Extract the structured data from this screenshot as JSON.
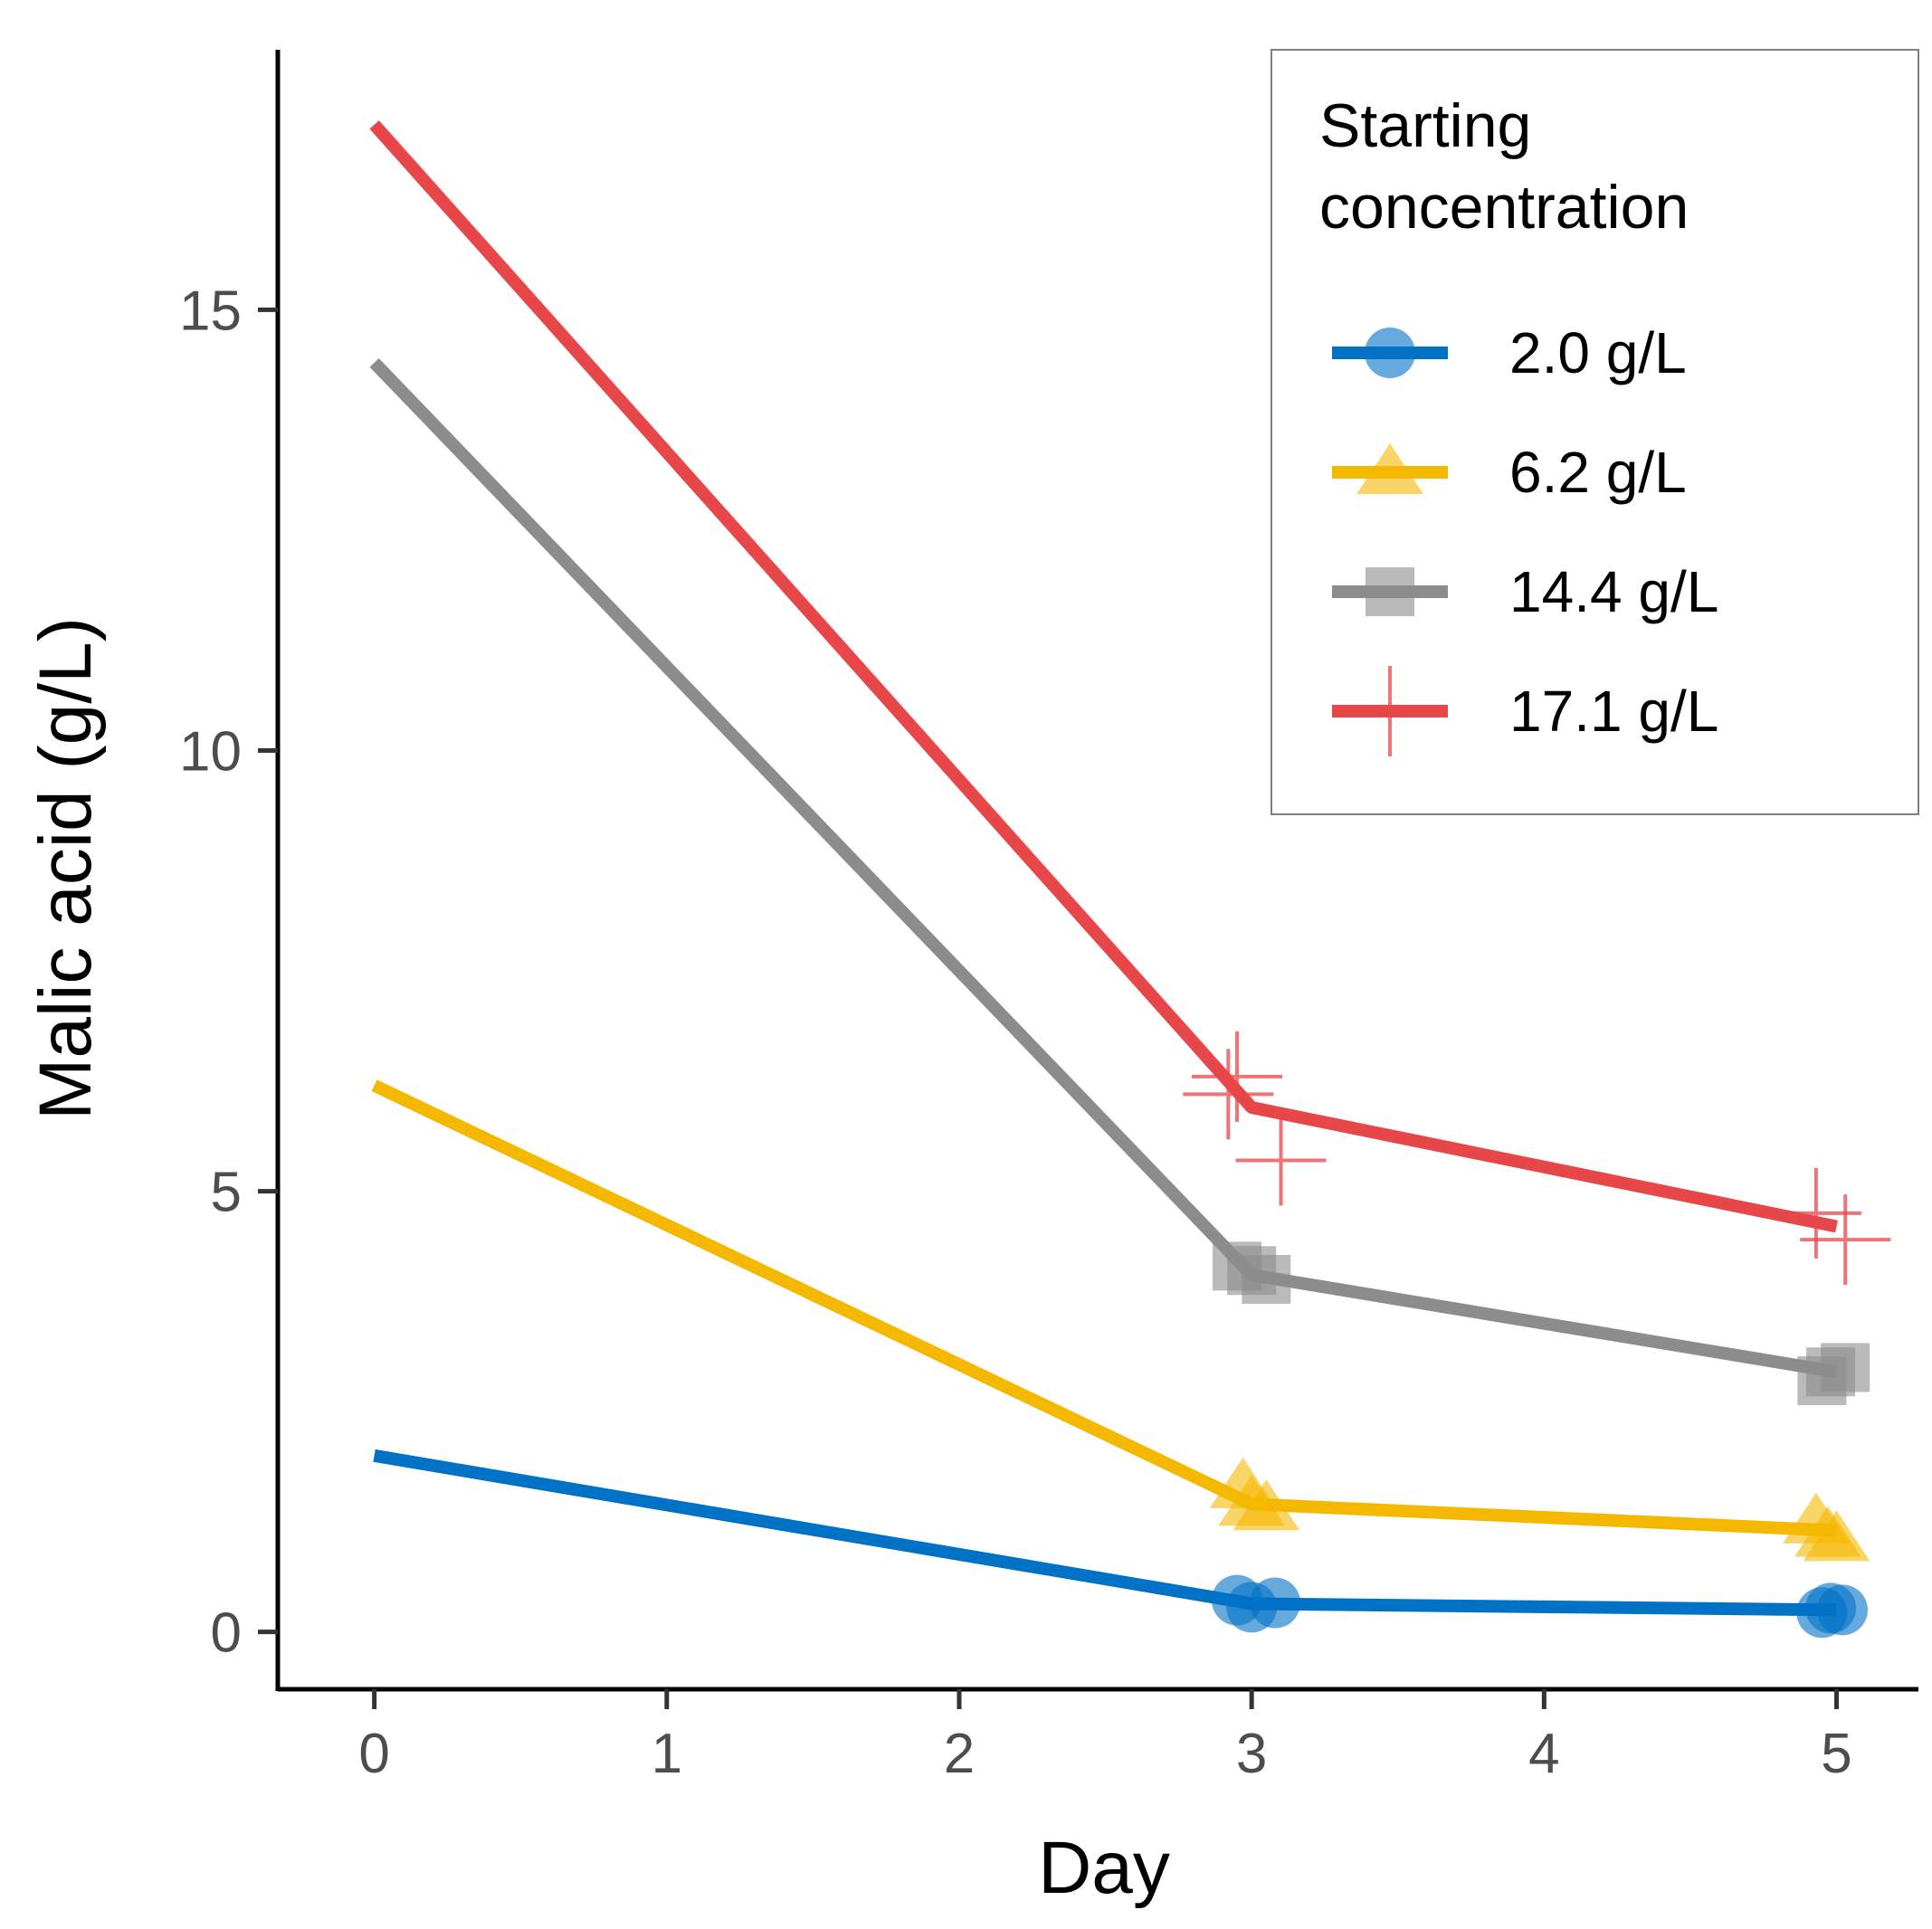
{
  "chart_data": {
    "type": "line",
    "title": "",
    "xlabel": "Day",
    "ylabel": "Malic acid (g/L)",
    "x_ticks": [
      "0",
      "1",
      "2",
      "3",
      "4",
      "5"
    ],
    "y_ticks": [
      "0",
      "5",
      "10",
      "15"
    ],
    "xlim": [
      -0.33,
      5.28
    ],
    "ylim": [
      -0.65,
      17.95
    ],
    "grid": false,
    "legend": {
      "title_lines": [
        "Starting",
        "concentration"
      ],
      "position": "top-right"
    },
    "series": [
      {
        "name": "2.0 g/L",
        "color": "#0072C6",
        "marker": "circle",
        "line": [
          [
            0,
            2.0
          ],
          [
            3,
            0.32
          ],
          [
            5,
            0.25
          ]
        ],
        "points": [
          [
            2.95,
            0.36
          ],
          [
            3.0,
            0.28
          ],
          [
            3.08,
            0.33
          ],
          [
            4.95,
            0.22
          ],
          [
            4.98,
            0.27
          ],
          [
            5.02,
            0.25
          ]
        ]
      },
      {
        "name": "6.2 g/L",
        "color": "#F5B800",
        "marker": "triangle",
        "line": [
          [
            0,
            6.2
          ],
          [
            3,
            1.45
          ],
          [
            5,
            1.15
          ]
        ],
        "points": [
          [
            2.97,
            1.65
          ],
          [
            3.0,
            1.45
          ],
          [
            3.05,
            1.4
          ],
          [
            4.93,
            1.25
          ],
          [
            4.97,
            1.1
          ],
          [
            5.0,
            1.05
          ]
        ]
      },
      {
        "name": "14.4 g/L",
        "color": "#8C8C8C",
        "marker": "square",
        "line": [
          [
            0,
            14.4
          ],
          [
            3,
            4.05
          ],
          [
            5,
            2.95
          ]
        ],
        "points": [
          [
            2.95,
            4.15
          ],
          [
            3.0,
            4.1
          ],
          [
            3.05,
            4.0
          ],
          [
            4.95,
            2.85
          ],
          [
            4.98,
            2.95
          ],
          [
            5.03,
            3.0
          ]
        ]
      },
      {
        "name": "17.1 g/L",
        "color": "#E8474A",
        "marker": "cross",
        "line": [
          [
            0,
            17.1
          ],
          [
            3,
            5.95
          ],
          [
            5,
            4.6
          ]
        ],
        "points": [
          [
            2.92,
            6.1
          ],
          [
            2.95,
            6.3
          ],
          [
            3.1,
            5.35
          ],
          [
            4.93,
            4.75
          ],
          [
            5.03,
            4.45
          ]
        ]
      }
    ]
  }
}
